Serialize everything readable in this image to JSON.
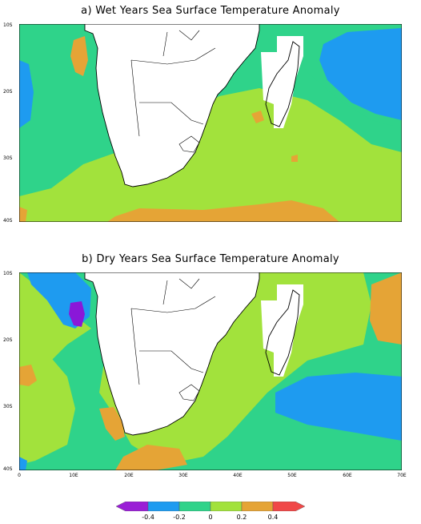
{
  "panels": {
    "wet": {
      "title": "a) Wet Years Sea Surface Temperature Anomaly"
    },
    "dry": {
      "title": "b) Dry Years Sea Surface Temperature Anomaly"
    }
  },
  "map": {
    "lat_labels": [
      "10S",
      "20S",
      "30S",
      "40S"
    ],
    "lon_labels": [
      "0",
      "10E",
      "20E",
      "30E",
      "40E",
      "50E",
      "60E",
      "70E"
    ],
    "extent": {
      "lon": [
        0,
        70
      ],
      "lat": [
        -10,
        -40
      ]
    }
  },
  "colorbar": {
    "labels": [
      "-0.4",
      "-0.2",
      "0",
      "0.2",
      "0.4"
    ],
    "colors": [
      "#9a1fd6",
      "#1e9bf0",
      "#2fd38a",
      "#a2e23c",
      "#e5a436",
      "#f04848"
    ]
  },
  "palette": {
    "purple": "#8a18d8",
    "blue": "#1e9bf0",
    "green": "#2fd38a",
    "lime": "#a2e23c",
    "orange": "#e5a436",
    "land": "#ffffff"
  }
}
